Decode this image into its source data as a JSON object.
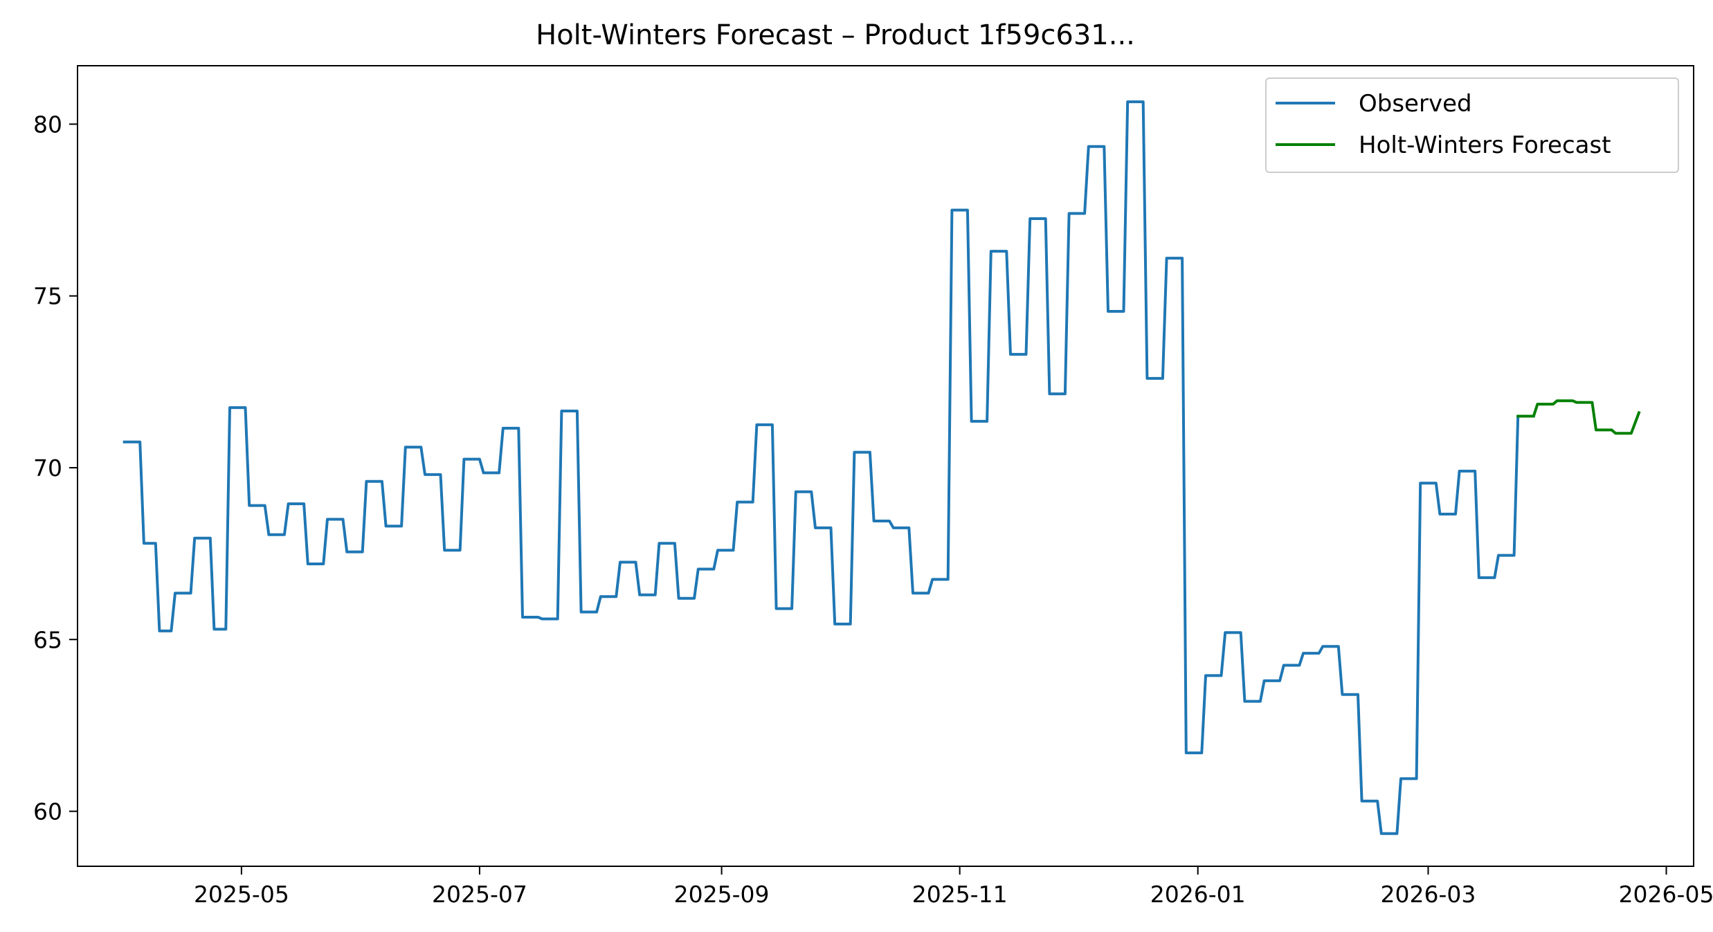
{
  "chart_data": {
    "type": "line",
    "title": "Holt-Winters Forecast – Product 1f59c631...",
    "xlabel": "",
    "ylabel": "",
    "xlim": [
      "2025-03-20",
      "2026-05-08"
    ],
    "ylim": [
      58.4,
      81.7
    ],
    "x_ticks": [
      "2025-05",
      "2025-07",
      "2025-09",
      "2025-11",
      "2026-01",
      "2026-03",
      "2026-05"
    ],
    "y_ticks": [
      60,
      65,
      70,
      75,
      80
    ],
    "grid": false,
    "legend": {
      "position": "top-right"
    },
    "series": [
      {
        "name": "Observed",
        "color": "#1f77b4",
        "points": [
          [
            "2025-04-01",
            70.75
          ],
          [
            "2025-04-05",
            70.75
          ],
          [
            "2025-04-06",
            67.8
          ],
          [
            "2025-04-09",
            67.8
          ],
          [
            "2025-04-10",
            65.25
          ],
          [
            "2025-04-13",
            65.25
          ],
          [
            "2025-04-14",
            66.35
          ],
          [
            "2025-04-18",
            66.35
          ],
          [
            "2025-04-19",
            67.95
          ],
          [
            "2025-04-23",
            67.95
          ],
          [
            "2025-04-24",
            65.3
          ],
          [
            "2025-04-27",
            65.3
          ],
          [
            "2025-04-28",
            71.75
          ],
          [
            "2025-05-02",
            71.75
          ],
          [
            "2025-05-03",
            68.9
          ],
          [
            "2025-05-07",
            68.9
          ],
          [
            "2025-05-08",
            68.05
          ],
          [
            "2025-05-12",
            68.05
          ],
          [
            "2025-05-13",
            68.95
          ],
          [
            "2025-05-17",
            68.95
          ],
          [
            "2025-05-18",
            67.2
          ],
          [
            "2025-05-22",
            67.2
          ],
          [
            "2025-05-23",
            68.5
          ],
          [
            "2025-05-27",
            68.5
          ],
          [
            "2025-05-28",
            67.55
          ],
          [
            "2025-06-01",
            67.55
          ],
          [
            "2025-06-02",
            69.6
          ],
          [
            "2025-06-06",
            69.6
          ],
          [
            "2025-06-07",
            68.3
          ],
          [
            "2025-06-11",
            68.3
          ],
          [
            "2025-06-12",
            70.6
          ],
          [
            "2025-06-16",
            70.6
          ],
          [
            "2025-06-17",
            69.8
          ],
          [
            "2025-06-21",
            69.8
          ],
          [
            "2025-06-22",
            67.6
          ],
          [
            "2025-06-26",
            67.6
          ],
          [
            "2025-06-27",
            70.25
          ],
          [
            "2025-07-01",
            70.25
          ],
          [
            "2025-07-02",
            69.85
          ],
          [
            "2025-07-06",
            69.85
          ],
          [
            "2025-07-07",
            71.15
          ],
          [
            "2025-07-11",
            71.15
          ],
          [
            "2025-07-12",
            65.65
          ],
          [
            "2025-07-16",
            65.65
          ],
          [
            "2025-07-17",
            65.6
          ],
          [
            "2025-07-21",
            65.6
          ],
          [
            "2025-07-22",
            71.65
          ],
          [
            "2025-07-26",
            71.65
          ],
          [
            "2025-07-27",
            65.8
          ],
          [
            "2025-07-31",
            65.8
          ],
          [
            "2025-08-01",
            66.25
          ],
          [
            "2025-08-05",
            66.25
          ],
          [
            "2025-08-06",
            67.25
          ],
          [
            "2025-08-10",
            67.25
          ],
          [
            "2025-08-11",
            66.3
          ],
          [
            "2025-08-15",
            66.3
          ],
          [
            "2025-08-16",
            67.8
          ],
          [
            "2025-08-20",
            67.8
          ],
          [
            "2025-08-21",
            66.2
          ],
          [
            "2025-08-25",
            66.2
          ],
          [
            "2025-08-26",
            67.05
          ],
          [
            "2025-08-30",
            67.05
          ],
          [
            "2025-08-31",
            67.6
          ],
          [
            "2025-09-04",
            67.6
          ],
          [
            "2025-09-05",
            69.0
          ],
          [
            "2025-09-09",
            69.0
          ],
          [
            "2025-09-10",
            71.25
          ],
          [
            "2025-09-14",
            71.25
          ],
          [
            "2025-09-15",
            65.9
          ],
          [
            "2025-09-19",
            65.9
          ],
          [
            "2025-09-20",
            69.3
          ],
          [
            "2025-09-24",
            69.3
          ],
          [
            "2025-09-25",
            68.25
          ],
          [
            "2025-09-29",
            68.25
          ],
          [
            "2025-09-30",
            65.45
          ],
          [
            "2025-10-04",
            65.45
          ],
          [
            "2025-10-05",
            70.45
          ],
          [
            "2025-10-09",
            70.45
          ],
          [
            "2025-10-10",
            68.45
          ],
          [
            "2025-10-14",
            68.45
          ],
          [
            "2025-10-15",
            68.25
          ],
          [
            "2025-10-19",
            68.25
          ],
          [
            "2025-10-20",
            66.35
          ],
          [
            "2025-10-24",
            66.35
          ],
          [
            "2025-10-25",
            66.75
          ],
          [
            "2025-10-29",
            66.75
          ],
          [
            "2025-10-30",
            77.5
          ],
          [
            "2025-11-03",
            77.5
          ],
          [
            "2025-11-04",
            71.35
          ],
          [
            "2025-11-08",
            71.35
          ],
          [
            "2025-11-09",
            76.3
          ],
          [
            "2025-11-13",
            76.3
          ],
          [
            "2025-11-14",
            73.3
          ],
          [
            "2025-11-18",
            73.3
          ],
          [
            "2025-11-19",
            77.25
          ],
          [
            "2025-11-23",
            77.25
          ],
          [
            "2025-11-24",
            72.15
          ],
          [
            "2025-11-28",
            72.15
          ],
          [
            "2025-11-29",
            77.4
          ],
          [
            "2025-12-03",
            77.4
          ],
          [
            "2025-12-04",
            79.35
          ],
          [
            "2025-12-08",
            79.35
          ],
          [
            "2025-12-09",
            74.55
          ],
          [
            "2025-12-13",
            74.55
          ],
          [
            "2025-12-14",
            80.65
          ],
          [
            "2025-12-18",
            80.65
          ],
          [
            "2025-12-19",
            72.6
          ],
          [
            "2025-12-23",
            72.6
          ],
          [
            "2025-12-24",
            76.1
          ],
          [
            "2025-12-28",
            76.1
          ],
          [
            "2025-12-29",
            61.7
          ],
          [
            "2026-01-02",
            61.7
          ],
          [
            "2026-01-03",
            63.95
          ],
          [
            "2026-01-07",
            63.95
          ],
          [
            "2026-01-08",
            65.2
          ],
          [
            "2026-01-12",
            65.2
          ],
          [
            "2026-01-13",
            63.2
          ],
          [
            "2026-01-17",
            63.2
          ],
          [
            "2026-01-18",
            63.8
          ],
          [
            "2026-01-22",
            63.8
          ],
          [
            "2026-01-23",
            64.25
          ],
          [
            "2026-01-27",
            64.25
          ],
          [
            "2026-01-28",
            64.6
          ],
          [
            "2026-02-01",
            64.6
          ],
          [
            "2026-02-02",
            64.8
          ],
          [
            "2026-02-06",
            64.8
          ],
          [
            "2026-02-07",
            63.4
          ],
          [
            "2026-02-11",
            63.4
          ],
          [
            "2026-02-12",
            60.3
          ],
          [
            "2026-02-16",
            60.3
          ],
          [
            "2026-02-17",
            59.35
          ],
          [
            "2026-02-21",
            59.35
          ],
          [
            "2026-02-22",
            60.95
          ],
          [
            "2026-02-26",
            60.95
          ],
          [
            "2026-02-27",
            69.55
          ],
          [
            "2026-03-03",
            69.55
          ],
          [
            "2026-03-04",
            68.65
          ],
          [
            "2026-03-08",
            68.65
          ],
          [
            "2026-03-09",
            69.9
          ],
          [
            "2026-03-13",
            69.9
          ],
          [
            "2026-03-14",
            66.8
          ],
          [
            "2026-03-18",
            66.8
          ],
          [
            "2026-03-19",
            67.45
          ],
          [
            "2026-03-23",
            67.45
          ],
          [
            "2026-03-24",
            71.5
          ],
          [
            "2026-03-28",
            71.5
          ]
        ]
      },
      {
        "name": "Holt-Winters Forecast",
        "color": "#008000",
        "points": [
          [
            "2026-03-24",
            71.5
          ],
          [
            "2026-03-28",
            71.5
          ],
          [
            "2026-03-29",
            71.85
          ],
          [
            "2026-04-02",
            71.85
          ],
          [
            "2026-04-03",
            71.95
          ],
          [
            "2026-04-07",
            71.95
          ],
          [
            "2026-04-08",
            71.9
          ],
          [
            "2026-04-12",
            71.9
          ],
          [
            "2026-04-13",
            71.1
          ],
          [
            "2026-04-17",
            71.1
          ],
          [
            "2026-04-18",
            71.0
          ],
          [
            "2026-04-22",
            71.0
          ],
          [
            "2026-04-24",
            71.6
          ]
        ]
      }
    ]
  }
}
